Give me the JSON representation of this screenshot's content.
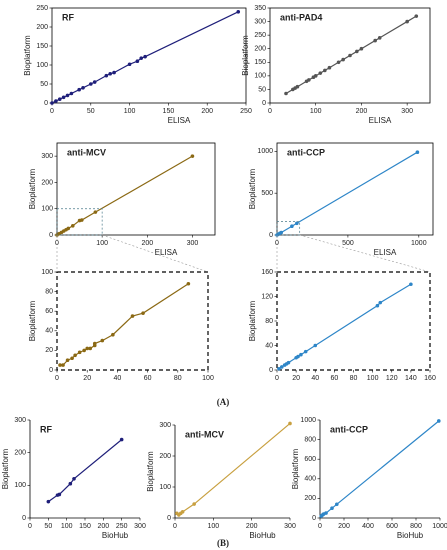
{
  "chart_data": [
    {
      "type": "scatter",
      "title": "RF",
      "xlabel": "ELISA",
      "ylabel": "Bioplatform",
      "color": "#1f1f7a",
      "x": [
        0,
        5,
        10,
        15,
        20,
        25,
        35,
        40,
        50,
        55,
        70,
        75,
        80,
        100,
        110,
        115,
        120,
        240
      ],
      "values": [
        0,
        5,
        10,
        15,
        20,
        25,
        35,
        40,
        50,
        55,
        72,
        77,
        80,
        102,
        110,
        118,
        122,
        240
      ],
      "xlim": [
        0,
        250
      ],
      "xticks": [
        0,
        50,
        100,
        150,
        200,
        250
      ],
      "ylim": [
        0,
        250
      ],
      "yticks": [
        0,
        50,
        100,
        150,
        200,
        250
      ]
    },
    {
      "type": "scatter",
      "title": "anti-PAD4",
      "xlabel": "ELISA",
      "ylabel": "Bioplatform",
      "color": "#555555",
      "x": [
        35,
        50,
        55,
        60,
        80,
        85,
        95,
        100,
        110,
        120,
        130,
        150,
        160,
        175,
        190,
        200,
        230,
        240,
        300,
        320
      ],
      "values": [
        35,
        50,
        55,
        60,
        80,
        85,
        95,
        100,
        110,
        120,
        130,
        150,
        160,
        175,
        190,
        200,
        230,
        240,
        300,
        320
      ],
      "xlim": [
        0,
        350
      ],
      "xticks": [
        0,
        100,
        200,
        300
      ],
      "ylim": [
        0,
        350
      ],
      "yticks": [
        0,
        50,
        100,
        150,
        200,
        250,
        300,
        350
      ]
    },
    {
      "type": "scatter",
      "title": "anti-MCV",
      "xlabel": "ELISA",
      "ylabel": "Bioplatform",
      "color": "#8b6914",
      "x": [
        0,
        5,
        10,
        15,
        20,
        25,
        35,
        50,
        55,
        85,
        300
      ],
      "values": [
        0,
        5,
        10,
        15,
        20,
        25,
        35,
        55,
        57,
        87,
        300
      ],
      "xlim": [
        0,
        350
      ],
      "xticks": [
        0,
        100,
        200,
        300
      ],
      "ylim": [
        0,
        350
      ],
      "yticks": [
        0,
        100,
        200,
        300
      ]
    },
    {
      "type": "scatter",
      "title": "anti-CCP",
      "xlabel": "ELISA",
      "ylabel": "Bioplatform",
      "color": "#2e86c8",
      "x": [
        0,
        10,
        20,
        30,
        105,
        140,
        990
      ],
      "values": [
        0,
        10,
        20,
        30,
        105,
        140,
        990
      ],
      "xlim": [
        0,
        1100
      ],
      "xticks": [
        0,
        500,
        1000
      ],
      "ylim": [
        0,
        1100
      ],
      "yticks": [
        0,
        500,
        1000
      ]
    },
    {
      "type": "scatter",
      "color": "#8b6914",
      "x": [
        2,
        4,
        7,
        10,
        12,
        15,
        18,
        20,
        22,
        25,
        25,
        30,
        37,
        50,
        57,
        87
      ],
      "values": [
        5,
        5,
        10,
        12,
        15,
        18,
        20,
        22,
        22,
        25,
        27,
        30,
        36,
        55,
        58,
        88
      ],
      "xlim": [
        0,
        100
      ],
      "xticks": [
        0,
        20,
        40,
        60,
        80,
        100
      ],
      "ylim": [
        0,
        100
      ],
      "yticks": [
        0,
        20,
        40,
        60,
        80,
        100
      ],
      "ylabel": "Bioplatform"
    },
    {
      "type": "scatter",
      "color": "#2e86c8",
      "x": [
        2,
        5,
        8,
        10,
        12,
        20,
        22,
        25,
        30,
        40,
        105,
        108,
        140
      ],
      "values": [
        2,
        5,
        8,
        10,
        12,
        20,
        22,
        25,
        30,
        40,
        105,
        110,
        140
      ],
      "xlim": [
        0,
        160
      ],
      "xticks": [
        0,
        20,
        40,
        60,
        80,
        100,
        120,
        140,
        160
      ],
      "ylim": [
        0,
        160
      ],
      "yticks": [
        0,
        40,
        80,
        120,
        160
      ],
      "ylabel": "Bioplatform"
    },
    {
      "type": "scatter",
      "title": "RF",
      "xlabel": "BioHub",
      "ylabel": "Bioplatform",
      "color": "#1f1f7a",
      "x": [
        50,
        75,
        80,
        110,
        120,
        250
      ],
      "values": [
        50,
        70,
        72,
        105,
        120,
        240
      ],
      "xlim": [
        0,
        300
      ],
      "xticks": [
        0,
        50,
        100,
        150,
        200,
        250,
        300
      ],
      "ylim": [
        0,
        300
      ],
      "yticks": [
        0,
        100,
        200,
        300
      ]
    },
    {
      "type": "scatter",
      "title": "anti-MCV",
      "xlabel": "BioHub",
      "ylabel": "Bioplatform",
      "color": "#c8a040",
      "x": [
        5,
        10,
        15,
        20,
        50,
        300
      ],
      "values": [
        15,
        10,
        15,
        20,
        45,
        305
      ],
      "xlim": [
        0,
        300
      ],
      "xticks": [
        0,
        100,
        200,
        300
      ],
      "ylim": [
        0,
        300
      ],
      "yticks": [
        0,
        100,
        200,
        300
      ]
    },
    {
      "type": "scatter",
      "title": "anti-CCP",
      "xlabel": "BioHub",
      "ylabel": "Bioplatform",
      "color": "#2e86c8",
      "x": [
        10,
        20,
        30,
        50,
        100,
        140,
        990
      ],
      "values": [
        20,
        30,
        40,
        50,
        100,
        140,
        990
      ],
      "xlim": [
        0,
        1000
      ],
      "xticks": [
        0,
        200,
        400,
        600,
        800,
        1000
      ],
      "ylim": [
        0,
        1000
      ],
      "yticks": [
        0,
        200,
        400,
        600,
        800,
        1000
      ]
    }
  ],
  "panels": [
    "(A)",
    "(B)"
  ]
}
